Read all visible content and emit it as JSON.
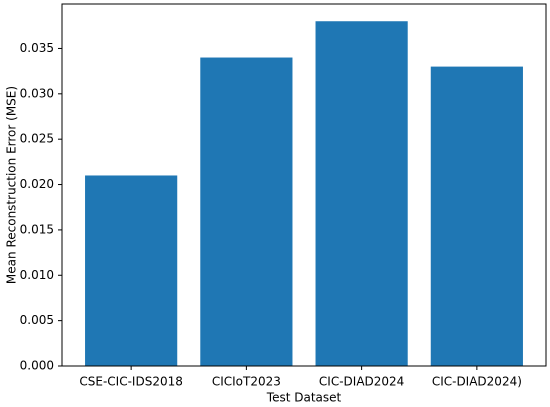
{
  "chart_data": {
    "type": "bar",
    "xlabel": "Test Dataset",
    "ylabel": "Mean Reconstruction Error (MSE)",
    "categories": [
      "CSE-CIC-IDS2018",
      "CICIoT2023",
      "CIC-DIAD2024",
      "CIC-DIAD2024)"
    ],
    "values": [
      0.021,
      0.034,
      0.038,
      0.033
    ],
    "color": "#1f77b4",
    "ylim": [
      0,
      0.0399
    ],
    "yticks": [
      {
        "value": 0,
        "label": "0.000"
      },
      {
        "value": 0.005,
        "label": "0.005"
      },
      {
        "value": 0.01,
        "label": "0.010"
      },
      {
        "value": 0.015,
        "label": "0.015"
      },
      {
        "value": 0.02,
        "label": "0.020"
      },
      {
        "value": 0.025,
        "label": "0.025"
      },
      {
        "value": 0.03,
        "label": "0.030"
      },
      {
        "value": 0.035,
        "label": "0.035"
      }
    ],
    "grid": false
  }
}
